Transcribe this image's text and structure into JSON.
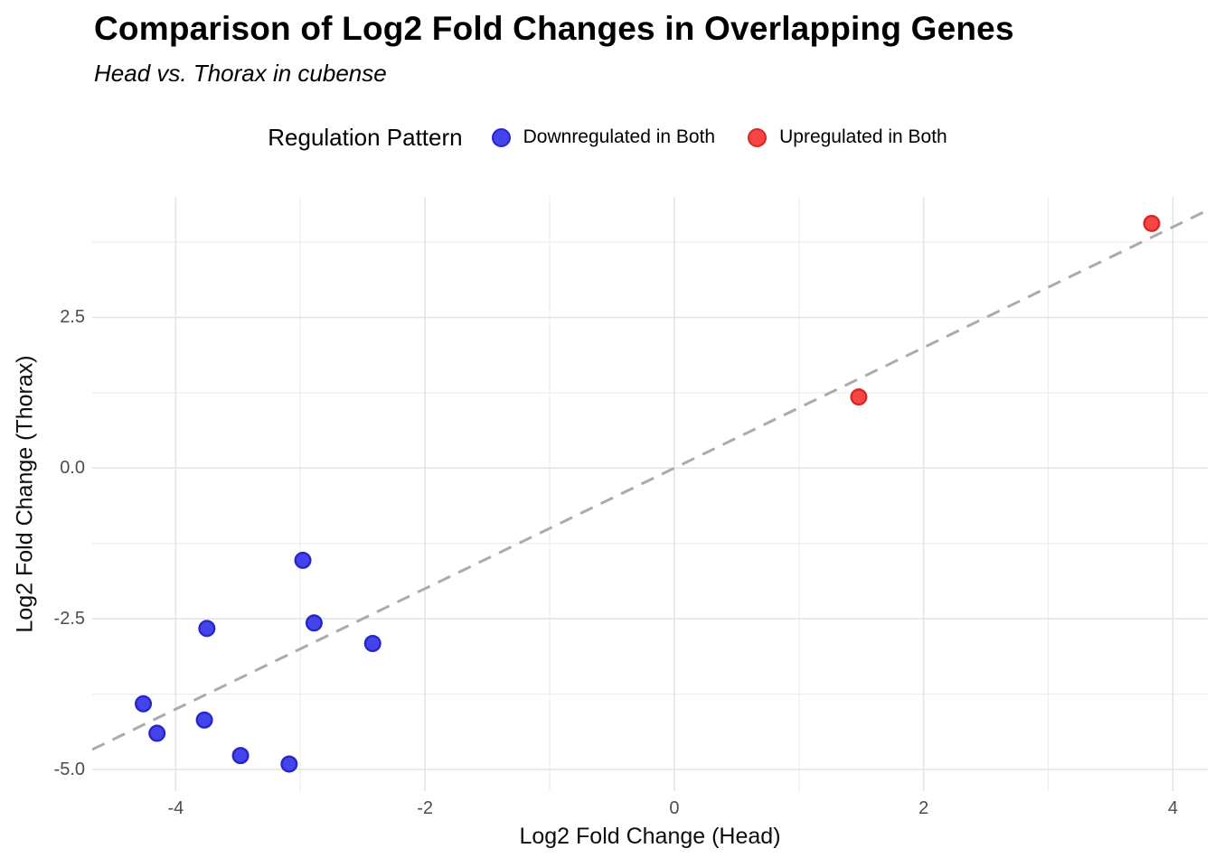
{
  "chart_data": {
    "type": "scatter",
    "title": "Comparison of Log2 Fold Changes in Overlapping Genes",
    "subtitle": "Head vs. Thorax in cubense",
    "xlabel": "Log2 Fold Change (Head)",
    "ylabel": "Log2 Fold Change (Thorax)",
    "legend_title": "Regulation Pattern",
    "legend_position": "top",
    "grid": true,
    "xlim": [
      -4.67,
      4.28
    ],
    "ylim": [
      -5.36,
      4.5
    ],
    "x_ticks": [
      -4,
      -2,
      0,
      2,
      4
    ],
    "x_tick_labels": [
      "-4",
      "-2",
      "0",
      "2",
      "4"
    ],
    "x_minor_ticks": [
      -3,
      -1,
      1,
      3
    ],
    "y_ticks": [
      2.5,
      0.0,
      -2.5,
      -5.0
    ],
    "y_tick_labels": [
      "2.5",
      "0.0",
      "-2.5",
      "-5.0"
    ],
    "y_minor_ticks": [
      3.75,
      1.25,
      -1.25,
      -3.75
    ],
    "reference_line": {
      "kind": "identity",
      "slope": 1,
      "intercept": 0,
      "style": "dashed",
      "color": "#ababab"
    },
    "series": [
      {
        "name": "Downregulated in Both",
        "fill_color": "#4444ec",
        "stroke_color": "#2626c9",
        "points": [
          [
            -2.98,
            -1.53
          ],
          [
            -2.89,
            -2.57
          ],
          [
            -3.75,
            -2.66
          ],
          [
            -2.42,
            -2.91
          ],
          [
            -4.26,
            -3.91
          ],
          [
            -3.77,
            -4.18
          ],
          [
            -4.15,
            -4.4
          ],
          [
            -3.48,
            -4.77
          ],
          [
            -3.09,
            -4.91
          ]
        ]
      },
      {
        "name": "Upregulated in Both",
        "fill_color": "#f54545",
        "stroke_color": "#d62828",
        "points": [
          [
            1.48,
            1.18
          ],
          [
            3.83,
            4.06
          ]
        ]
      }
    ]
  },
  "style": {
    "major_grid_color": "#e3e3e3",
    "minor_grid_color": "#ededed",
    "background_color": "#ffffff",
    "tick_label_color": "#4d4d4d",
    "point_radius": 8.3,
    "point_stroke_width": 2.4
  }
}
